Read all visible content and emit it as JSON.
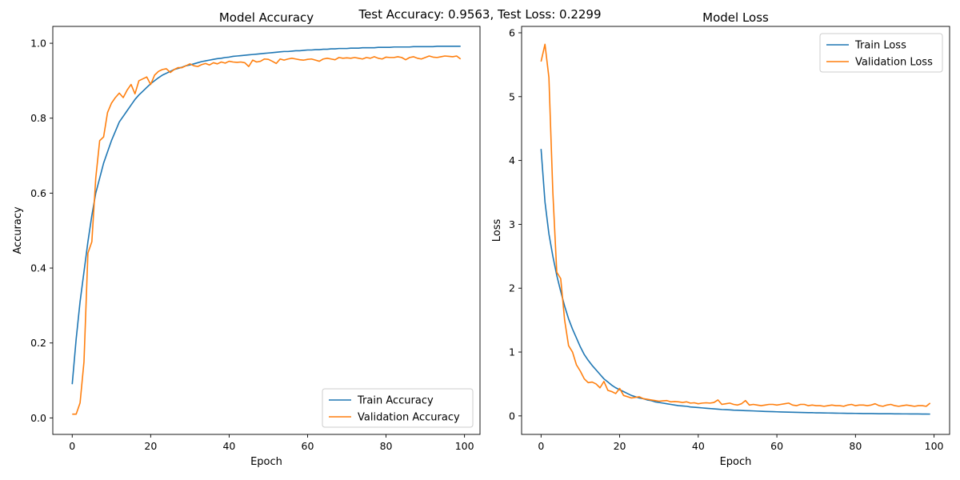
{
  "suptitle": "Test Accuracy: 0.9563, Test Loss: 0.2299",
  "colors": {
    "train": "#1f77b4",
    "validation": "#ff7f0e",
    "frame": "#000000",
    "legend_border": "#cccccc"
  },
  "chart_data": [
    {
      "type": "line",
      "title": "Model Accuracy",
      "xlabel": "Epoch",
      "ylabel": "Accuracy",
      "xlim": [
        -4.95,
        103.95
      ],
      "ylim": [
        -0.044,
        1.045
      ],
      "xticks": [
        0,
        20,
        40,
        60,
        80,
        100
      ],
      "yticks": [
        0.0,
        0.2,
        0.4,
        0.6,
        0.8,
        1.0
      ],
      "ytick_labels": [
        "0.0",
        "0.2",
        "0.4",
        "0.6",
        "0.8",
        "1.0"
      ],
      "grid": false,
      "legend_position": "lower-right",
      "series": [
        {
          "name": "Train Accuracy",
          "color": "#1f77b4",
          "x": [
            0,
            1,
            2,
            3,
            4,
            5,
            6,
            7,
            8,
            9,
            10,
            11,
            12,
            13,
            14,
            15,
            16,
            17,
            18,
            19,
            20,
            21,
            22,
            23,
            24,
            25,
            26,
            27,
            28,
            29,
            30,
            31,
            32,
            33,
            34,
            35,
            36,
            37,
            38,
            39,
            40,
            41,
            42,
            43,
            44,
            45,
            46,
            47,
            48,
            49,
            50,
            51,
            52,
            53,
            54,
            55,
            56,
            57,
            58,
            59,
            60,
            61,
            62,
            63,
            64,
            65,
            66,
            67,
            68,
            69,
            70,
            71,
            72,
            73,
            74,
            75,
            76,
            77,
            78,
            79,
            80,
            81,
            82,
            83,
            84,
            85,
            86,
            87,
            88,
            89,
            90,
            91,
            92,
            93,
            94,
            95,
            96,
            97,
            98,
            99
          ],
          "values": [
            0.09,
            0.21,
            0.31,
            0.39,
            0.47,
            0.54,
            0.6,
            0.64,
            0.68,
            0.71,
            0.74,
            0.765,
            0.79,
            0.805,
            0.82,
            0.835,
            0.85,
            0.862,
            0.872,
            0.882,
            0.892,
            0.9,
            0.908,
            0.915,
            0.92,
            0.925,
            0.93,
            0.933,
            0.936,
            0.94,
            0.942,
            0.945,
            0.948,
            0.951,
            0.953,
            0.955,
            0.957,
            0.959,
            0.96,
            0.962,
            0.963,
            0.965,
            0.966,
            0.967,
            0.968,
            0.969,
            0.97,
            0.971,
            0.972,
            0.973,
            0.974,
            0.975,
            0.976,
            0.977,
            0.978,
            0.978,
            0.979,
            0.98,
            0.98,
            0.981,
            0.982,
            0.982,
            0.983,
            0.983,
            0.984,
            0.984,
            0.985,
            0.985,
            0.986,
            0.986,
            0.986,
            0.987,
            0.987,
            0.987,
            0.988,
            0.988,
            0.988,
            0.988,
            0.989,
            0.989,
            0.989,
            0.989,
            0.99,
            0.99,
            0.99,
            0.99,
            0.99,
            0.991,
            0.991,
            0.991,
            0.991,
            0.991,
            0.991,
            0.992,
            0.992,
            0.992,
            0.992,
            0.992,
            0.992,
            0.992
          ]
        },
        {
          "name": "Validation Accuracy",
          "color": "#ff7f0e",
          "x": [
            0,
            1,
            2,
            3,
            4,
            5,
            6,
            7,
            8,
            9,
            10,
            11,
            12,
            13,
            14,
            15,
            16,
            17,
            18,
            19,
            20,
            21,
            22,
            23,
            24,
            25,
            26,
            27,
            28,
            29,
            30,
            31,
            32,
            33,
            34,
            35,
            36,
            37,
            38,
            39,
            40,
            41,
            42,
            43,
            44,
            45,
            46,
            47,
            48,
            49,
            50,
            51,
            52,
            53,
            54,
            55,
            56,
            57,
            58,
            59,
            60,
            61,
            62,
            63,
            64,
            65,
            66,
            67,
            68,
            69,
            70,
            71,
            72,
            73,
            74,
            75,
            76,
            77,
            78,
            79,
            80,
            81,
            82,
            83,
            84,
            85,
            86,
            87,
            88,
            89,
            90,
            91,
            92,
            93,
            94,
            95,
            96,
            97,
            98,
            99
          ],
          "values": [
            0.01,
            0.01,
            0.04,
            0.15,
            0.44,
            0.47,
            0.64,
            0.74,
            0.75,
            0.815,
            0.84,
            0.855,
            0.867,
            0.855,
            0.875,
            0.89,
            0.865,
            0.9,
            0.905,
            0.91,
            0.89,
            0.915,
            0.925,
            0.93,
            0.932,
            0.922,
            0.93,
            0.935,
            0.935,
            0.94,
            0.945,
            0.94,
            0.938,
            0.943,
            0.946,
            0.942,
            0.948,
            0.945,
            0.95,
            0.947,
            0.952,
            0.95,
            0.949,
            0.95,
            0.948,
            0.938,
            0.955,
            0.95,
            0.952,
            0.958,
            0.957,
            0.952,
            0.946,
            0.958,
            0.955,
            0.958,
            0.96,
            0.958,
            0.956,
            0.955,
            0.957,
            0.958,
            0.955,
            0.952,
            0.958,
            0.96,
            0.958,
            0.956,
            0.962,
            0.96,
            0.961,
            0.96,
            0.962,
            0.96,
            0.958,
            0.962,
            0.96,
            0.964,
            0.96,
            0.958,
            0.963,
            0.962,
            0.962,
            0.964,
            0.962,
            0.956,
            0.962,
            0.964,
            0.96,
            0.958,
            0.962,
            0.966,
            0.963,
            0.962,
            0.964,
            0.966,
            0.965,
            0.964,
            0.966,
            0.958
          ]
        }
      ]
    },
    {
      "type": "line",
      "title": "Model Loss",
      "xlabel": "Epoch",
      "ylabel": "Loss",
      "xlim": [
        -4.95,
        103.95
      ],
      "ylim": [
        -0.29,
        6.1
      ],
      "xticks": [
        0,
        20,
        40,
        60,
        80,
        100
      ],
      "yticks": [
        0,
        1,
        2,
        3,
        4,
        5,
        6
      ],
      "ytick_labels": [
        "0",
        "1",
        "2",
        "3",
        "4",
        "5",
        "6"
      ],
      "grid": false,
      "legend_position": "upper-right",
      "series": [
        {
          "name": "Train Loss",
          "color": "#1f77b4",
          "x": [
            0,
            1,
            2,
            3,
            4,
            5,
            6,
            7,
            8,
            9,
            10,
            11,
            12,
            13,
            14,
            15,
            16,
            17,
            18,
            19,
            20,
            21,
            22,
            23,
            24,
            25,
            26,
            27,
            28,
            29,
            30,
            31,
            32,
            33,
            34,
            35,
            36,
            37,
            38,
            39,
            40,
            41,
            42,
            43,
            44,
            45,
            46,
            47,
            48,
            49,
            50,
            51,
            52,
            53,
            54,
            55,
            56,
            57,
            58,
            59,
            60,
            61,
            62,
            63,
            64,
            65,
            66,
            67,
            68,
            69,
            70,
            71,
            72,
            73,
            74,
            75,
            76,
            77,
            78,
            79,
            80,
            81,
            82,
            83,
            84,
            85,
            86,
            87,
            88,
            89,
            90,
            91,
            92,
            93,
            94,
            95,
            96,
            97,
            98,
            99
          ],
          "values": [
            4.18,
            3.35,
            2.85,
            2.5,
            2.2,
            1.95,
            1.72,
            1.52,
            1.36,
            1.22,
            1.08,
            0.96,
            0.87,
            0.79,
            0.72,
            0.65,
            0.58,
            0.53,
            0.48,
            0.44,
            0.41,
            0.38,
            0.35,
            0.32,
            0.3,
            0.28,
            0.27,
            0.25,
            0.24,
            0.22,
            0.21,
            0.2,
            0.19,
            0.18,
            0.17,
            0.16,
            0.155,
            0.15,
            0.14,
            0.135,
            0.13,
            0.125,
            0.12,
            0.115,
            0.11,
            0.105,
            0.1,
            0.098,
            0.095,
            0.09,
            0.088,
            0.085,
            0.082,
            0.08,
            0.078,
            0.075,
            0.073,
            0.07,
            0.068,
            0.066,
            0.064,
            0.062,
            0.06,
            0.058,
            0.057,
            0.055,
            0.054,
            0.052,
            0.05,
            0.05,
            0.048,
            0.047,
            0.046,
            0.045,
            0.044,
            0.043,
            0.042,
            0.041,
            0.04,
            0.04,
            0.039,
            0.038,
            0.037,
            0.036,
            0.036,
            0.035,
            0.034,
            0.034,
            0.033,
            0.033,
            0.032,
            0.032,
            0.031,
            0.031,
            0.03,
            0.03,
            0.03,
            0.029,
            0.029,
            0.028
          ]
        },
        {
          "name": "Validation Loss",
          "color": "#ff7f0e",
          "x": [
            0,
            1,
            2,
            3,
            4,
            5,
            6,
            7,
            8,
            9,
            10,
            11,
            12,
            13,
            14,
            15,
            16,
            17,
            18,
            19,
            20,
            21,
            22,
            23,
            24,
            25,
            26,
            27,
            28,
            29,
            30,
            31,
            32,
            33,
            34,
            35,
            36,
            37,
            38,
            39,
            40,
            41,
            42,
            43,
            44,
            45,
            46,
            47,
            48,
            49,
            50,
            51,
            52,
            53,
            54,
            55,
            56,
            57,
            58,
            59,
            60,
            61,
            62,
            63,
            64,
            65,
            66,
            67,
            68,
            69,
            70,
            71,
            72,
            73,
            74,
            75,
            76,
            77,
            78,
            79,
            80,
            81,
            82,
            83,
            84,
            85,
            86,
            87,
            88,
            89,
            90,
            91,
            92,
            93,
            94,
            95,
            96,
            97,
            98,
            99
          ],
          "values": [
            5.55,
            5.82,
            5.3,
            3.5,
            2.25,
            2.15,
            1.5,
            1.1,
            1.0,
            0.8,
            0.7,
            0.58,
            0.52,
            0.53,
            0.5,
            0.44,
            0.54,
            0.4,
            0.38,
            0.35,
            0.43,
            0.32,
            0.3,
            0.28,
            0.29,
            0.3,
            0.27,
            0.26,
            0.25,
            0.24,
            0.23,
            0.235,
            0.24,
            0.22,
            0.225,
            0.22,
            0.21,
            0.22,
            0.2,
            0.205,
            0.19,
            0.2,
            0.205,
            0.2,
            0.21,
            0.25,
            0.18,
            0.19,
            0.2,
            0.18,
            0.17,
            0.19,
            0.24,
            0.17,
            0.18,
            0.17,
            0.16,
            0.17,
            0.18,
            0.18,
            0.17,
            0.18,
            0.19,
            0.2,
            0.17,
            0.16,
            0.18,
            0.18,
            0.16,
            0.17,
            0.16,
            0.16,
            0.15,
            0.16,
            0.17,
            0.16,
            0.16,
            0.15,
            0.17,
            0.18,
            0.16,
            0.17,
            0.17,
            0.16,
            0.17,
            0.19,
            0.16,
            0.15,
            0.17,
            0.18,
            0.16,
            0.15,
            0.16,
            0.17,
            0.16,
            0.15,
            0.16,
            0.16,
            0.15,
            0.2
          ]
        }
      ]
    }
  ]
}
